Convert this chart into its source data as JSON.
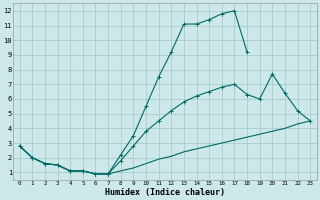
{
  "xlabel": "Humidex (Indice chaleur)",
  "bg_color": "#cce8e8",
  "grid_color": "#aacccc",
  "line_color": "#006868",
  "xlim": [
    -0.5,
    23.5
  ],
  "ylim": [
    0.5,
    12.5
  ],
  "xticks": [
    0,
    1,
    2,
    3,
    4,
    5,
    6,
    7,
    8,
    9,
    10,
    11,
    12,
    13,
    14,
    15,
    16,
    17,
    18,
    19,
    20,
    21,
    22,
    23
  ],
  "yticks": [
    1,
    2,
    3,
    4,
    5,
    6,
    7,
    8,
    9,
    10,
    11,
    12
  ],
  "line1_x": [
    0,
    1,
    2,
    3,
    4,
    5,
    6,
    7,
    8,
    9,
    10,
    11,
    12,
    13,
    14,
    15,
    16,
    17,
    18
  ],
  "line1_y": [
    2.8,
    2.0,
    1.6,
    1.5,
    1.1,
    1.1,
    0.9,
    0.9,
    2.2,
    3.5,
    5.5,
    7.5,
    9.2,
    11.1,
    11.1,
    11.4,
    11.8,
    12.0,
    9.2
  ],
  "line2_x": [
    0,
    1,
    2,
    3,
    4,
    5,
    6,
    7,
    8,
    9,
    10,
    11,
    12,
    13,
    14,
    15,
    16,
    17,
    18,
    19,
    20,
    21,
    22,
    23
  ],
  "line2_y": [
    2.8,
    2.0,
    1.6,
    1.5,
    1.1,
    1.1,
    0.9,
    0.9,
    1.8,
    2.8,
    3.8,
    4.5,
    5.2,
    5.8,
    6.2,
    6.5,
    6.8,
    7.0,
    6.3,
    6.0,
    7.7,
    6.4,
    5.2,
    4.5
  ],
  "line3_x": [
    0,
    1,
    2,
    3,
    4,
    5,
    6,
    7,
    8,
    9,
    10,
    11,
    12,
    13,
    14,
    15,
    16,
    17,
    18,
    19,
    20,
    21,
    22,
    23
  ],
  "line3_y": [
    2.8,
    2.0,
    1.6,
    1.5,
    1.1,
    1.1,
    0.9,
    0.9,
    1.1,
    1.3,
    1.6,
    1.9,
    2.1,
    2.4,
    2.6,
    2.8,
    3.0,
    3.2,
    3.4,
    3.6,
    3.8,
    4.0,
    4.3,
    4.5
  ]
}
